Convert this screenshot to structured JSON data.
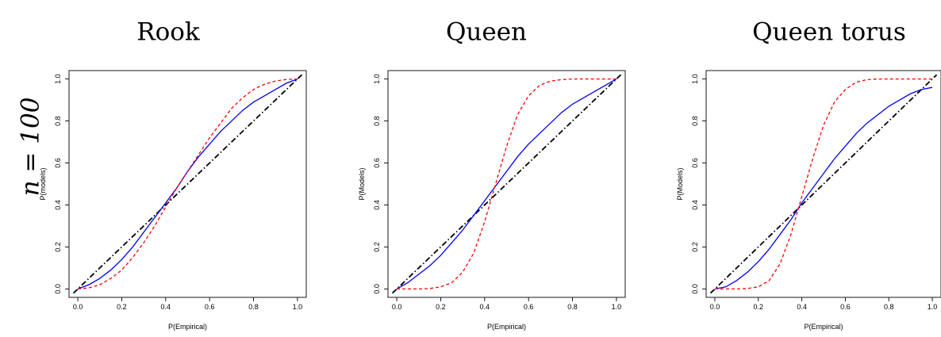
{
  "row_label": "n = 100",
  "chart_data": [
    {
      "type": "line",
      "title": "Rook",
      "xlabel": "P(Empirical)",
      "ylabel": "P(models)",
      "xlim": [
        0,
        1
      ],
      "ylim": [
        0,
        1
      ],
      "xticks": [
        "0.0",
        "0.2",
        "0.4",
        "0.6",
        "0.8",
        "1.0"
      ],
      "yticks": [
        "0.0",
        "0.2",
        "0.4",
        "0.6",
        "0.8",
        "1.0"
      ],
      "grid": false,
      "legend": "none",
      "series": [
        {
          "style": "dash-dot",
          "color": "#000000",
          "x": [
            -0.02,
            1.02
          ],
          "y": [
            -0.02,
            1.02
          ]
        },
        {
          "style": "solid",
          "color": "#0000ff",
          "x": [
            0.0,
            0.05,
            0.1,
            0.15,
            0.2,
            0.25,
            0.3,
            0.35,
            0.4,
            0.45,
            0.5,
            0.55,
            0.6,
            0.65,
            0.7,
            0.75,
            0.8,
            0.85,
            0.9,
            0.95,
            1.0
          ],
          "y": [
            0.0,
            0.02,
            0.05,
            0.09,
            0.14,
            0.2,
            0.27,
            0.34,
            0.41,
            0.48,
            0.56,
            0.63,
            0.69,
            0.75,
            0.8,
            0.85,
            0.89,
            0.92,
            0.95,
            0.98,
            1.0
          ]
        },
        {
          "style": "dashed",
          "color": "#ff0000",
          "x": [
            0.0,
            0.05,
            0.1,
            0.15,
            0.2,
            0.25,
            0.3,
            0.35,
            0.4,
            0.45,
            0.5,
            0.55,
            0.6,
            0.65,
            0.7,
            0.75,
            0.8,
            0.85,
            0.9,
            0.95,
            1.0
          ],
          "y": [
            0.0,
            0.005,
            0.02,
            0.05,
            0.09,
            0.15,
            0.22,
            0.3,
            0.39,
            0.48,
            0.56,
            0.64,
            0.72,
            0.79,
            0.86,
            0.91,
            0.95,
            0.975,
            0.99,
            0.998,
            1.0
          ]
        }
      ]
    },
    {
      "type": "line",
      "title": "Queen",
      "xlabel": "P(Empirical)",
      "ylabel": "P(Models)",
      "xlim": [
        0,
        1
      ],
      "ylim": [
        0,
        1
      ],
      "xticks": [
        "0.0",
        "0.2",
        "0.4",
        "0.6",
        "0.8",
        "1.0"
      ],
      "yticks": [
        "0.0",
        "0.2",
        "0.4",
        "0.6",
        "0.8",
        "1.0"
      ],
      "grid": false,
      "legend": "none",
      "series": [
        {
          "style": "dash-dot",
          "color": "#000000",
          "x": [
            -0.02,
            1.02
          ],
          "y": [
            -0.02,
            1.02
          ]
        },
        {
          "style": "solid",
          "color": "#0000ff",
          "x": [
            0.0,
            0.05,
            0.1,
            0.15,
            0.2,
            0.25,
            0.3,
            0.35,
            0.4,
            0.45,
            0.5,
            0.55,
            0.6,
            0.65,
            0.7,
            0.75,
            0.8,
            0.85,
            0.9,
            0.95,
            1.0
          ],
          "y": [
            0.0,
            0.03,
            0.07,
            0.11,
            0.16,
            0.22,
            0.28,
            0.35,
            0.42,
            0.49,
            0.56,
            0.63,
            0.69,
            0.74,
            0.79,
            0.84,
            0.88,
            0.91,
            0.94,
            0.97,
            1.0
          ]
        },
        {
          "style": "dashed",
          "color": "#ff0000",
          "x": [
            0.0,
            0.05,
            0.1,
            0.15,
            0.2,
            0.25,
            0.3,
            0.35,
            0.4,
            0.45,
            0.5,
            0.55,
            0.6,
            0.65,
            0.7,
            0.75,
            0.8,
            0.85,
            0.9,
            0.95,
            1.0
          ],
          "y": [
            0.0,
            0.0,
            0.0,
            0.002,
            0.01,
            0.03,
            0.08,
            0.17,
            0.32,
            0.5,
            0.68,
            0.83,
            0.92,
            0.97,
            0.99,
            0.997,
            1.0,
            1.0,
            1.0,
            1.0,
            1.0
          ]
        }
      ]
    },
    {
      "type": "line",
      "title": "Queen torus",
      "xlabel": "P(Empirical)",
      "ylabel": "P(Models)",
      "xlim": [
        0,
        1
      ],
      "ylim": [
        0,
        1
      ],
      "xticks": [
        "0.0",
        "0.2",
        "0.4",
        "0.6",
        "0.8",
        "1.0"
      ],
      "yticks": [
        "0.0",
        "0.2",
        "0.4",
        "0.6",
        "0.8",
        "1.0"
      ],
      "grid": false,
      "legend": "none",
      "series": [
        {
          "style": "dash-dot",
          "color": "#000000",
          "x": [
            -0.02,
            1.02
          ],
          "y": [
            -0.02,
            1.02
          ]
        },
        {
          "style": "solid",
          "color": "#0000ff",
          "x": [
            0.0,
            0.05,
            0.1,
            0.15,
            0.2,
            0.25,
            0.3,
            0.35,
            0.4,
            0.45,
            0.5,
            0.55,
            0.6,
            0.65,
            0.7,
            0.75,
            0.8,
            0.85,
            0.9,
            0.95,
            1.0
          ],
          "y": [
            0.0,
            0.01,
            0.04,
            0.08,
            0.13,
            0.19,
            0.26,
            0.33,
            0.41,
            0.48,
            0.55,
            0.62,
            0.68,
            0.74,
            0.79,
            0.83,
            0.87,
            0.9,
            0.93,
            0.95,
            0.96
          ]
        },
        {
          "style": "dashed",
          "color": "#ff0000",
          "x": [
            0.0,
            0.05,
            0.1,
            0.15,
            0.2,
            0.25,
            0.3,
            0.35,
            0.4,
            0.45,
            0.5,
            0.55,
            0.6,
            0.65,
            0.7,
            0.75,
            0.8,
            0.85,
            0.9,
            0.95,
            1.0
          ],
          "y": [
            0.0,
            0.0,
            0.0,
            0.002,
            0.01,
            0.04,
            0.12,
            0.26,
            0.44,
            0.62,
            0.78,
            0.89,
            0.95,
            0.985,
            0.997,
            1.0,
            1.0,
            1.0,
            1.0,
            1.0,
            1.0
          ]
        }
      ]
    }
  ]
}
